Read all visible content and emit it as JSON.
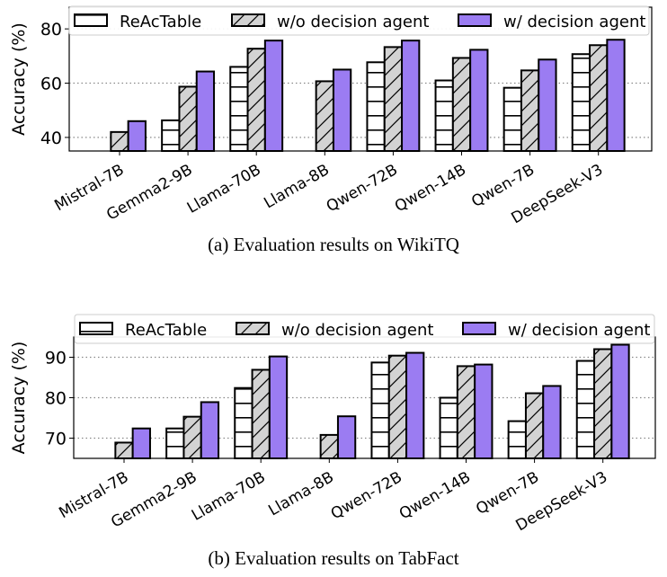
{
  "legend": [
    "ReAcTable",
    "w/o decision agent",
    "w/ decision agent"
  ],
  "colors": {
    "reactable": "#ffffff",
    "without": "#d3d3d3",
    "with": "#9b7cf2",
    "edge": "#000000"
  },
  "patterns": {
    "reactable": "horizontal-hatch",
    "without": "diagonal-hatch",
    "with": "solid"
  },
  "chart_data": [
    {
      "type": "bar",
      "caption": "(a)  Evaluation results on WikiTQ",
      "ylabel": "Accuracy (%)",
      "xlabel": "",
      "ylim": [
        35,
        88
      ],
      "yticks": [
        40,
        60,
        80
      ],
      "grid": "horizontal-dotted",
      "legend_placement": "top",
      "categories": [
        "Mistral-7B",
        "Gemma2-9B",
        "Llama-70B",
        "Llama-8B",
        "Qwen-72B",
        "Qwen-14B",
        "Qwen-7B",
        "DeepSeek-V3"
      ],
      "series": [
        {
          "name": "ReAcTable",
          "values": [
            null,
            46.3,
            66.0,
            null,
            67.7,
            61.0,
            58.3,
            70.7
          ]
        },
        {
          "name": "w/o decision agent",
          "values": [
            42.0,
            58.7,
            72.7,
            60.7,
            73.3,
            69.3,
            64.7,
            74.0
          ]
        },
        {
          "name": "w/ decision agent",
          "values": [
            46.0,
            64.3,
            75.7,
            65.0,
            75.7,
            72.3,
            68.7,
            76.0
          ]
        }
      ]
    },
    {
      "type": "bar",
      "caption": "(b)  Evaluation results on TabFact",
      "ylabel": "Accuracy (%)",
      "xlabel": "",
      "ylim": [
        65,
        95
      ],
      "yticks": [
        70,
        80,
        90
      ],
      "grid": "horizontal-dotted",
      "legend_placement": "top",
      "categories": [
        "Mistral-7B",
        "Gemma2-9B",
        "Llama-70B",
        "Llama-8B",
        "Qwen-72B",
        "Qwen-14B",
        "Qwen-7B",
        "DeepSeek-V3"
      ],
      "series": [
        {
          "name": "ReAcTable",
          "values": [
            null,
            72.4,
            82.4,
            null,
            88.7,
            80.0,
            74.2,
            89.1
          ]
        },
        {
          "name": "w/o decision agent",
          "values": [
            68.9,
            75.3,
            86.9,
            70.8,
            90.4,
            87.8,
            81.1,
            92.0
          ]
        },
        {
          "name": "w/ decision agent",
          "values": [
            72.4,
            78.9,
            90.2,
            75.4,
            91.1,
            88.2,
            82.9,
            93.1
          ]
        }
      ]
    }
  ]
}
